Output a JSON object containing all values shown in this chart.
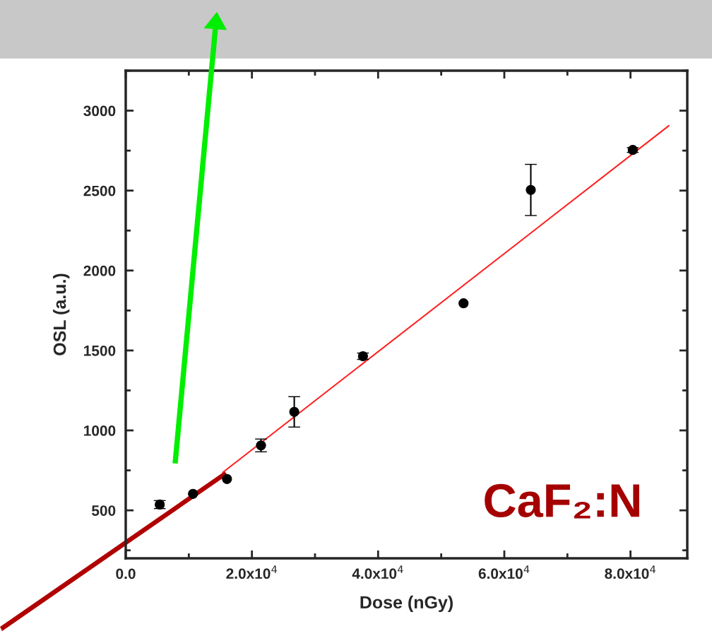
{
  "chart_data": {
    "type": "scatter",
    "xlabel": "Dose (nGy)",
    "ylabel": "OSL (a.u.)",
    "annotations": [
      "CaF₂:N"
    ],
    "series": [
      {
        "color": "#000000",
        "marker": "circle",
        "x": [
          5390,
          10660,
          16050,
          21440,
          26710,
          37600,
          53540,
          64200,
          80360
        ],
        "values": [
          536,
          603,
          696,
          906,
          1116,
          1464,
          1795,
          2504,
          2754
        ],
        "errors": [
          25,
          null,
          null,
          40,
          95,
          20,
          null,
          160,
          15
        ]
      },
      {
        "type": "line",
        "color": "#ff2020",
        "x": [
          15380,
          86080
        ],
        "values": [
          737,
          2906
        ]
      }
    ],
    "xlim": [
      0,
      89000
    ],
    "ylim": [
      200,
      3250
    ],
    "xticks": [
      {
        "value": 0,
        "label": "0.0"
      },
      {
        "value": 20000,
        "label": "2.0x10$^{4}$"
      },
      {
        "value": 40000,
        "label": "4.0x10$^{4}$"
      },
      {
        "value": 60000,
        "label": "6.0x10$^{4}$"
      },
      {
        "value": 80000,
        "label": "8.0x10$^{4}$"
      }
    ],
    "yticks": [
      500,
      1000,
      1500,
      2000,
      2500,
      3000
    ],
    "grid": false,
    "legend": false
  }
}
